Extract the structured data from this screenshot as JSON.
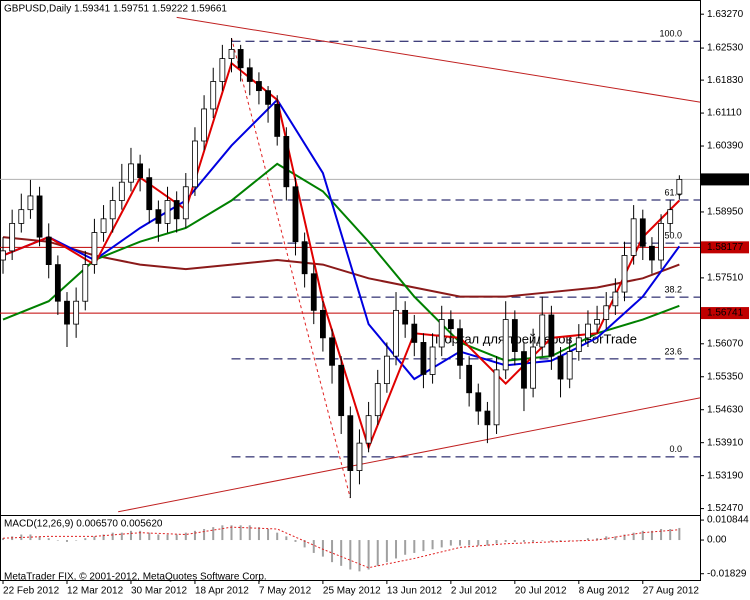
{
  "chart_data": {
    "type": "candlestick",
    "title": "GBPUSD,Daily  1.59341 1.59751 1.59222 1.59661",
    "xlim": [
      -0.33,
      76.26
    ],
    "xticks": [
      {
        "value": 0,
        "label": "22 Feb 2012"
      },
      {
        "value": 7,
        "label": "12 Mar 2012"
      },
      {
        "value": 14,
        "label": "30 Mar 2012"
      },
      {
        "value": 21,
        "label": "18 Apr 2012"
      },
      {
        "value": 28,
        "label": "7 May 2012"
      },
      {
        "value": 35,
        "label": "25 May 2012"
      },
      {
        "value": 42,
        "label": "13 Jun 2012"
      },
      {
        "value": 49,
        "label": "2 Jul 2012"
      },
      {
        "value": 56,
        "label": "20 Jul 2012"
      },
      {
        "value": 63,
        "label": "8 Aug 2012"
      },
      {
        "value": 70,
        "label": "27 Aug 2012"
      }
    ],
    "ylim": [
      1.5233,
      1.6358
    ],
    "yticks": [
      {
        "value": 1.6327,
        "label": "1.63270"
      },
      {
        "value": 1.6253,
        "label": "1.62530"
      },
      {
        "value": 1.6183,
        "label": "1.61830"
      },
      {
        "value": 1.6111,
        "label": "1.61110"
      },
      {
        "value": 1.6039,
        "label": "1.60390"
      },
      {
        "value": 1.5895,
        "label": "1.58950"
      },
      {
        "value": 1.5751,
        "label": "1.57510"
      },
      {
        "value": 1.5607,
        "label": "1.56070"
      },
      {
        "value": 1.5535,
        "label": "1.55350"
      },
      {
        "value": 1.5463,
        "label": "1.54630"
      },
      {
        "value": 1.5391,
        "label": "1.53910"
      },
      {
        "value": 1.5319,
        "label": "1.53190"
      },
      {
        "value": 1.5247,
        "label": "1.52470"
      }
    ],
    "candles": {
      "open": [
        1.579,
        1.581,
        1.587,
        1.59,
        1.593,
        1.584,
        1.578,
        1.57,
        1.565,
        1.57,
        1.578,
        1.585,
        1.588,
        1.592,
        1.596,
        1.6,
        1.597,
        1.59,
        1.587,
        1.592,
        1.588,
        1.595,
        1.605,
        1.612,
        1.618,
        1.623,
        1.625,
        1.621,
        1.618,
        1.616,
        1.613,
        1.606,
        1.595,
        1.583,
        1.576,
        1.568,
        1.562,
        1.556,
        1.545,
        1.533,
        1.539,
        1.545,
        1.552,
        1.558,
        1.568,
        1.565,
        1.561,
        1.554,
        1.56,
        1.566,
        1.564,
        1.556,
        1.55,
        1.546,
        1.543,
        1.555,
        1.566,
        1.559,
        1.551,
        1.56,
        1.567,
        1.558,
        1.553,
        1.559,
        1.562,
        1.565,
        1.566,
        1.569,
        1.572,
        1.58,
        1.588,
        1.582,
        1.579,
        1.587,
        1.59341
      ],
      "high": [
        1.584,
        1.59,
        1.5935,
        1.5965,
        1.595,
        1.587,
        1.58,
        1.572,
        1.573,
        1.581,
        1.588,
        1.591,
        1.595,
        1.6,
        1.6035,
        1.602,
        1.599,
        1.592,
        1.595,
        1.594,
        1.598,
        1.608,
        1.615,
        1.621,
        1.626,
        1.6275,
        1.626,
        1.623,
        1.62,
        1.617,
        1.615,
        1.608,
        1.597,
        1.585,
        1.578,
        1.57,
        1.564,
        1.558,
        1.547,
        1.542,
        1.548,
        1.555,
        1.561,
        1.572,
        1.57,
        1.567,
        1.563,
        1.563,
        1.569,
        1.568,
        1.566,
        1.558,
        1.552,
        1.548,
        1.558,
        1.57,
        1.568,
        1.561,
        1.564,
        1.571,
        1.569,
        1.56,
        1.562,
        1.565,
        1.568,
        1.569,
        1.572,
        1.575,
        1.583,
        1.591,
        1.59,
        1.584,
        1.589,
        1.592,
        1.59751
      ],
      "low": [
        1.576,
        1.579,
        1.585,
        1.588,
        1.582,
        1.575,
        1.567,
        1.56,
        1.562,
        1.568,
        1.576,
        1.583,
        1.585,
        1.59,
        1.594,
        1.594,
        1.587,
        1.583,
        1.585,
        1.585,
        1.586,
        1.593,
        1.603,
        1.61,
        1.616,
        1.62,
        1.618,
        1.615,
        1.613,
        1.609,
        1.604,
        1.592,
        1.58,
        1.573,
        1.565,
        1.559,
        1.552,
        1.541,
        1.527,
        1.53,
        1.537,
        1.543,
        1.55,
        1.556,
        1.562,
        1.558,
        1.551,
        1.552,
        1.558,
        1.561,
        1.553,
        1.547,
        1.543,
        1.539,
        1.541,
        1.553,
        1.556,
        1.546,
        1.549,
        1.558,
        1.555,
        1.549,
        1.551,
        1.557,
        1.56,
        1.563,
        1.564,
        1.567,
        1.57,
        1.578,
        1.579,
        1.576,
        1.577,
        1.585,
        1.59222
      ],
      "close": [
        1.581,
        1.587,
        1.59,
        1.593,
        1.584,
        1.578,
        1.57,
        1.565,
        1.57,
        1.578,
        1.585,
        1.588,
        1.592,
        1.596,
        1.6,
        1.597,
        1.59,
        1.587,
        1.592,
        1.588,
        1.595,
        1.605,
        1.612,
        1.618,
        1.623,
        1.625,
        1.621,
        1.618,
        1.616,
        1.613,
        1.606,
        1.595,
        1.583,
        1.576,
        1.568,
        1.562,
        1.556,
        1.545,
        1.533,
        1.539,
        1.545,
        1.552,
        1.558,
        1.568,
        1.565,
        1.561,
        1.554,
        1.56,
        1.566,
        1.564,
        1.556,
        1.55,
        1.546,
        1.543,
        1.555,
        1.566,
        1.559,
        1.551,
        1.56,
        1.567,
        1.558,
        1.553,
        1.559,
        1.562,
        1.565,
        1.566,
        1.569,
        1.572,
        1.58,
        1.588,
        1.582,
        1.579,
        1.587,
        1.59,
        1.59661
      ]
    },
    "series": [
      {
        "color": "#8b1a1a",
        "x": [
          0,
          5,
          10,
          15,
          20,
          25,
          30,
          35,
          40,
          45,
          50,
          55,
          60,
          65,
          70,
          74
        ],
        "values": [
          1.584,
          1.583,
          1.58,
          1.578,
          1.577,
          1.578,
          1.579,
          1.578,
          1.575,
          1.573,
          1.571,
          1.571,
          1.572,
          1.573,
          1.575,
          1.578
        ]
      },
      {
        "color": "#008000",
        "x": [
          0,
          5,
          10,
          15,
          20,
          25,
          30,
          35,
          40,
          45,
          50,
          55,
          60,
          65,
          70,
          74
        ],
        "values": [
          1.566,
          1.57,
          1.579,
          1.583,
          1.586,
          1.592,
          1.6,
          1.594,
          1.583,
          1.571,
          1.561,
          1.557,
          1.558,
          1.563,
          1.566,
          1.569
        ]
      },
      {
        "color": "#0000e0",
        "x": [
          0,
          5,
          10,
          15,
          20,
          25,
          30,
          35,
          40,
          45,
          50,
          55,
          60,
          65,
          70,
          74
        ],
        "values": [
          1.58,
          1.584,
          1.579,
          1.586,
          1.592,
          1.604,
          1.614,
          1.598,
          1.565,
          1.553,
          1.559,
          1.556,
          1.557,
          1.562,
          1.571,
          1.582
        ]
      },
      {
        "color": "#e00000",
        "x": [
          0,
          5,
          10,
          15,
          20,
          25,
          30,
          35,
          40,
          45,
          50,
          55,
          60,
          65,
          70,
          74
        ],
        "values": [
          1.58,
          1.584,
          1.578,
          1.597,
          1.59,
          1.622,
          1.614,
          1.57,
          1.538,
          1.563,
          1.562,
          1.552,
          1.562,
          1.563,
          1.584,
          1.592
        ]
      }
    ],
    "trendlines": [
      {
        "color": "#c02020",
        "x": [
          19,
          76.26
        ],
        "values": [
          1.632,
          1.6135
        ]
      },
      {
        "color": "#c02020",
        "x": [
          12.6,
          76.26
        ],
        "values": [
          1.524,
          1.5489
        ]
      }
    ],
    "fibonacci": {
      "color": "#000050",
      "label_color": "#000080",
      "anchor_color": "#e02020",
      "x": [
        25,
        38
      ],
      "values": [
        1.6275,
        1.527
      ],
      "levels": [
        {
          "value": 1.6268,
          "label": "100.0"
        },
        {
          "value": 1.5921,
          "label": "61.8"
        },
        {
          "value": 1.5827,
          "label": "50.0"
        },
        {
          "value": 1.5709,
          "label": "38.2"
        },
        {
          "value": 1.5574,
          "label": "23.6"
        },
        {
          "value": 1.536,
          "label": "0.0"
        }
      ]
    },
    "price_lines": [
      {
        "value": 1.59661,
        "label": "1.59661",
        "color": "#000000",
        "line_color": "#b0b0b0"
      },
      {
        "value": 1.58177,
        "label": "1.58177",
        "color": "#c00000",
        "line_color": "#c00000"
      },
      {
        "value": 1.56741,
        "label": "1.56741",
        "color": "#c00000",
        "line_color": "#c00000"
      }
    ],
    "watermark": "Портал для трейдеров - ForTrade",
    "copyright": "MetaTrader FIX, © 2001-2012, MetaQuotes Software Corp.",
    "macd": {
      "label": "MACD(12,26,9) 0.006570 0.005620",
      "color": "#a0a0a0",
      "ylim": [
        -0.0217,
        0.0136
      ],
      "yticks": [
        {
          "value": 0.010844,
          "label": "0.010844"
        },
        {
          "value": 0,
          "label": "0.00"
        },
        {
          "value": -0.01829,
          "label": "-0.01829"
        }
      ],
      "values": [
        0.001,
        0.002,
        0.003,
        0.003,
        0.002,
        0.001,
        0,
        -0.001,
        0,
        0.001,
        0.002,
        0.003,
        0.004,
        0.004,
        0.005,
        0.005,
        0.004,
        0.003,
        0.003,
        0.003,
        0.004,
        0.005,
        0.006,
        0.007,
        0.008,
        0.008,
        0.008,
        0.008,
        0.007,
        0.006,
        0.004,
        0.002,
        -0.001,
        -0.004,
        -0.007,
        -0.009,
        -0.012,
        -0.014,
        -0.016,
        -0.017,
        -0.016,
        -0.014,
        -0.012,
        -0.01,
        -0.008,
        -0.007,
        -0.006,
        -0.005,
        -0.004,
        -0.003,
        -0.003,
        -0.003,
        -0.003,
        -0.003,
        -0.002,
        -0.001,
        -0.001,
        -0.001,
        -0.001,
        0,
        -0.001,
        -0.001,
        0,
        0,
        0.001,
        0.001,
        0.002,
        0.002,
        0.003,
        0.004,
        0.005,
        0.005,
        0.006,
        0.006,
        0.00657
      ],
      "signal": {
        "color": "#e02020",
        "x": [
          0,
          5,
          10,
          15,
          20,
          25,
          30,
          35,
          40,
          45,
          50,
          55,
          60,
          65,
          70,
          74
        ],
        "values": [
          0.001,
          0.002,
          0.002,
          0.004,
          0.003,
          0.007,
          0.006,
          -0.005,
          -0.015,
          -0.01,
          -0.004,
          -0.002,
          -0.001,
          0.0,
          0.004,
          0.00562
        ]
      }
    }
  }
}
